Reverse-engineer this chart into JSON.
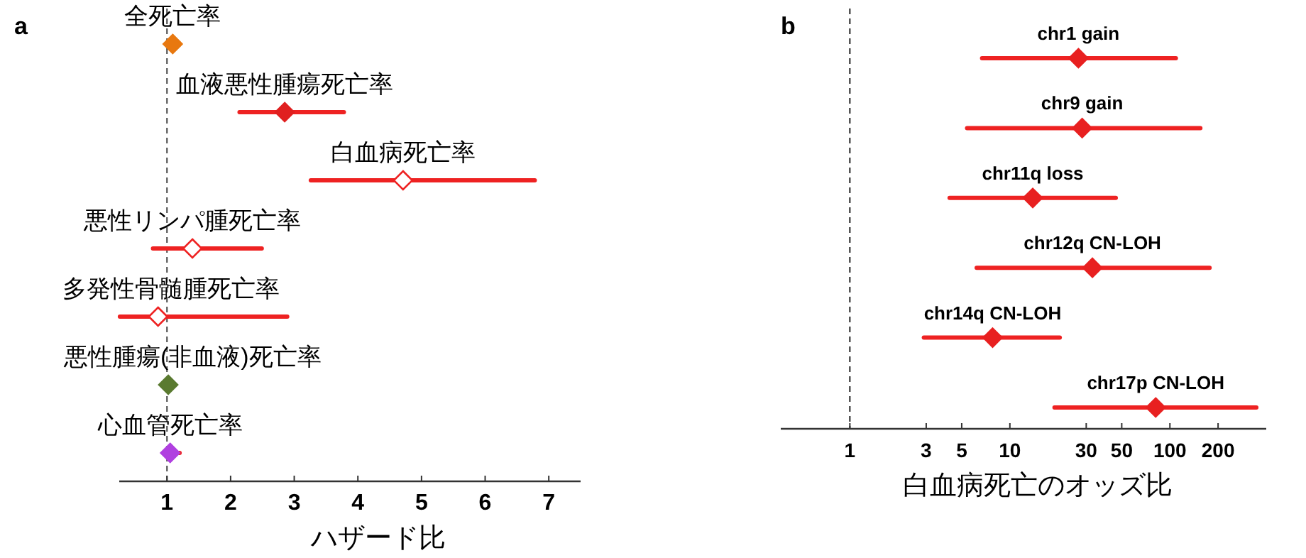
{
  "chart_data": [
    {
      "type": "scatter",
      "title": "a",
      "orientation": "horizontal",
      "marker": "diamond",
      "tick_labels": "x",
      "xlabel": "ハザード比",
      "categories": [
        "全死亡率",
        "血液悪性腫瘍死亡率",
        "白血病死亡率",
        "悪性リンパ腫死亡率",
        "多発性骨髄腫死亡率",
        "悪性腫瘍(非血液)死亡率",
        "心血管死亡率"
      ],
      "series": [
        {
          "color": "#ee2222",
          "values": [
            1.09,
            2.85,
            4.71,
            1.4,
            0.86,
            1.02,
            1.05
          ],
          "errors": [
            null,
            [
              2.14,
              3.78
            ],
            [
              3.26,
              6.78
            ],
            [
              0.78,
              2.49
            ],
            [
              0.26,
              2.89
            ],
            null,
            [
              0.98,
              1.2
            ]
          ],
          "colors": [
            "#e8780f",
            "#e02020",
            "#ffffff",
            "#ffffff",
            "#ffffff",
            "#5a7a30",
            "#b040e0"
          ]
        }
      ],
      "xlim": [
        0.25,
        7.5
      ],
      "xticks": [
        1,
        2,
        3,
        4,
        5,
        6,
        7
      ],
      "ref_lines": [
        {
          "axis": "x",
          "value": 1,
          "line_style": "dashed",
          "color": "#444444"
        }
      ]
    },
    {
      "type": "scatter",
      "title": "b",
      "orientation": "horizontal",
      "marker": "diamond",
      "tick_labels": "x",
      "log": "x",
      "xlabel": "白血病死亡のオッズ比",
      "categories": [
        "chr1 gain",
        "chr9 gain",
        "chr11q loss",
        "chr12q CN-LOH",
        "chr14q CN-LOH",
        "chr17p CN-LOH"
      ],
      "series": [
        {
          "color": "#ee2222",
          "values": [
            26.8,
            28.3,
            13.9,
            32.8,
            7.8,
            81.5
          ],
          "errors": [
            [
              6.7,
              109
            ],
            [
              5.4,
              155
            ],
            [
              4.2,
              45.9
            ],
            [
              6.2,
              177
            ],
            [
              2.9,
              20.5
            ],
            [
              19,
              347
            ]
          ],
          "colors": [
            "#e82020",
            "#e82020",
            "#e82020",
            "#e82020",
            "#e82020",
            "#e82020"
          ]
        }
      ],
      "xlim": [
        0.37,
        400
      ],
      "xticks": [
        1,
        3,
        5,
        10,
        30,
        50,
        100,
        200
      ],
      "ref_lines": [
        {
          "axis": "x",
          "value": 1,
          "line_style": "dashed",
          "color": "#222222"
        }
      ]
    }
  ]
}
